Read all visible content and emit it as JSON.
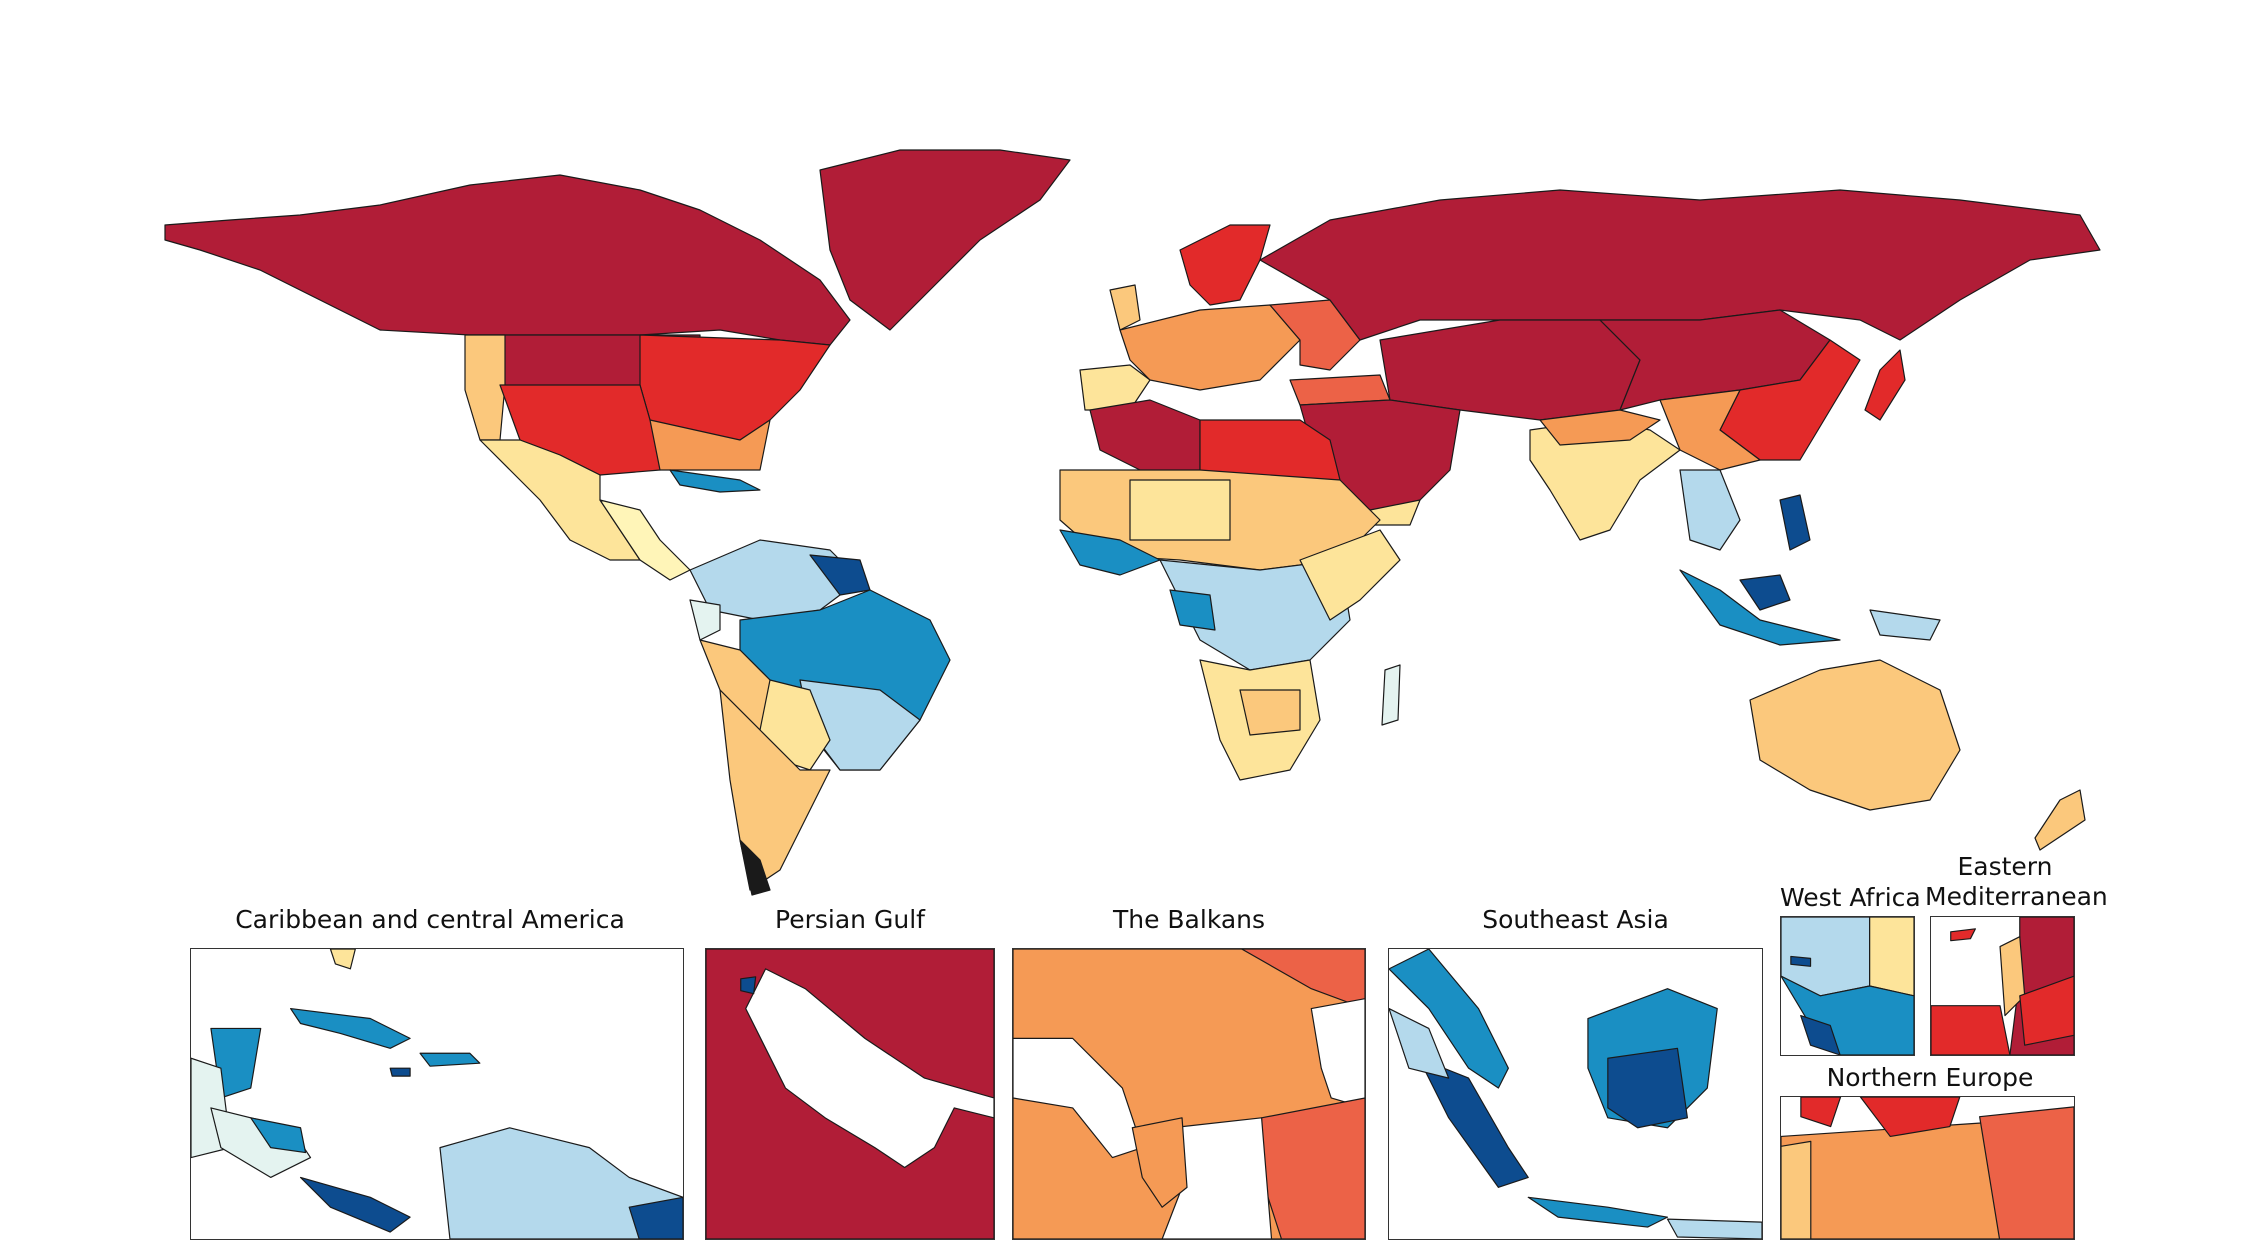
{
  "colors": {
    "darkred": "#b11d37",
    "red": "#e22a2a",
    "orangered": "#ec6247",
    "orange": "#f59a55",
    "lightorange": "#fbc87c",
    "yellow": "#fde49a",
    "lightyellow": "#fff5b8",
    "palecyan": "#e4f3f0",
    "lightblue": "#b4d9ec",
    "blue": "#1a8fc3",
    "darkblue": "#0d4c8f"
  },
  "insets": {
    "caribbean": {
      "title": "Caribbean and central America"
    },
    "persian_gulf": {
      "title": "Persian Gulf"
    },
    "balkans": {
      "title": "The Balkans"
    },
    "southeast_asia": {
      "title": "Southeast Asia"
    },
    "west_africa": {
      "title": "West Africa"
    },
    "eastern_med": {
      "title_line1": "Eastern",
      "title_line2": "Mediterranean"
    },
    "northern_europe": {
      "title": "Northern Europe"
    }
  }
}
